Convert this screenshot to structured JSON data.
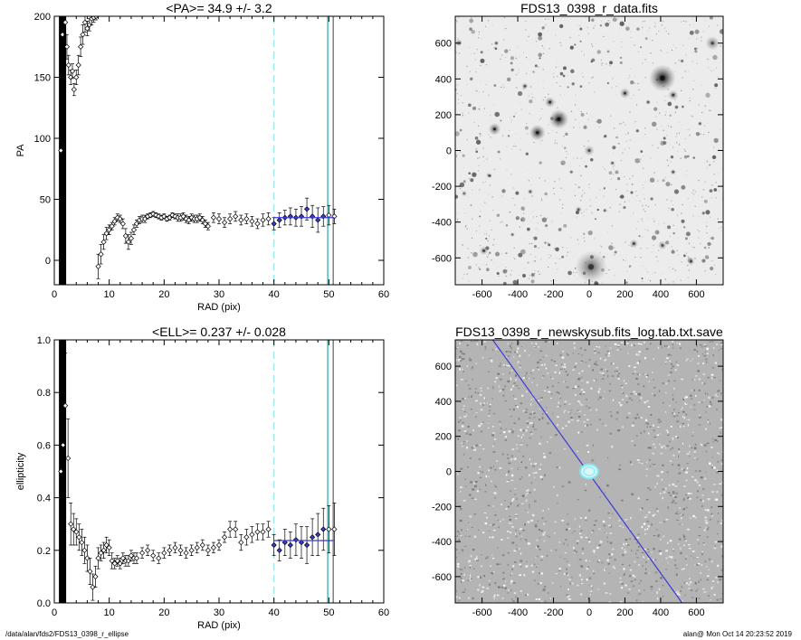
{
  "chart_data": [
    {
      "type": "scatter",
      "title": "<PA>=  34.9 +/-   3.2",
      "xlabel": "RAD (pix)",
      "ylabel": "PA",
      "xlim": [
        0,
        60
      ],
      "ylim": [
        -20,
        200
      ],
      "xticks": [
        0,
        10,
        20,
        30,
        40,
        50,
        60
      ],
      "yticks": [
        0,
        50,
        100,
        150,
        200
      ],
      "grid": false,
      "vlines": [
        {
          "x": 40,
          "style": "dashed",
          "color": "#9ee8ee"
        },
        {
          "x": 49.8,
          "style": "solid",
          "color": "#3fb8b0"
        },
        {
          "x": 50.8,
          "style": "solid",
          "color": "#777777"
        }
      ],
      "fit": {
        "x_range": [
          40,
          51
        ],
        "y": 35,
        "color": "#3a3ad8"
      },
      "series": [
        {
          "marker": "open-diamond",
          "x": [
            1.2,
            1.5,
            2.0,
            2.3,
            2.6,
            3.0,
            3.3,
            3.6,
            4.0,
            4.4,
            4.8,
            5.2,
            5.6,
            6.0,
            6.4,
            6.8,
            7.2,
            7.6,
            8.0,
            8.5,
            9.0,
            9.5,
            10.0,
            10.5,
            11.0,
            11.5,
            12.0,
            12.5,
            13.0,
            13.5,
            14.0,
            14.5,
            15.0,
            15.5,
            16.0,
            16.5,
            17.0,
            17.5,
            18.0,
            18.5,
            19.0,
            19.5,
            20.0,
            20.5,
            21.0,
            21.5,
            22.0,
            22.5,
            23.0,
            23.5,
            24.0,
            24.5,
            25.0,
            25.5,
            26.0,
            26.5,
            27.0,
            27.5,
            28.0,
            29.0,
            30.0,
            31.0,
            32.0,
            33.0,
            34.0,
            35.0,
            36.0,
            37.0,
            38.0,
            39.0,
            40.0,
            41.0,
            42.0,
            43.0,
            44.0,
            45.0,
            46.0,
            47.0,
            48.0,
            49.0,
            50.0,
            51.0
          ],
          "y": [
            90,
            185,
            195,
            175,
            160,
            150,
            155,
            140,
            150,
            160,
            175,
            185,
            195,
            190,
            193,
            198,
            199,
            200,
            -5,
            5,
            15,
            22,
            25,
            28,
            32,
            35,
            34,
            30,
            20,
            15,
            18,
            25,
            30,
            33,
            34,
            34,
            36,
            37,
            38,
            37,
            36,
            35,
            36,
            34,
            35,
            37,
            36,
            35,
            35,
            36,
            34,
            33,
            35,
            34,
            34,
            35,
            33,
            30,
            28,
            35,
            34,
            31,
            34,
            36,
            33,
            34,
            32,
            30,
            33,
            34,
            30,
            33,
            35,
            36,
            35,
            36,
            42,
            36,
            33,
            36,
            37,
            36
          ],
          "yerr": [
            5,
            8,
            10,
            10,
            8,
            6,
            6,
            5,
            6,
            8,
            8,
            8,
            8,
            6,
            5,
            5,
            4,
            3,
            10,
            8,
            6,
            5,
            4,
            3,
            3,
            3,
            3,
            4,
            6,
            6,
            5,
            4,
            3,
            3,
            3,
            3,
            2,
            2,
            2,
            2,
            2,
            2,
            2,
            2,
            2,
            2,
            2,
            3,
            3,
            3,
            3,
            3,
            3,
            3,
            3,
            3,
            3,
            3,
            3,
            4,
            4,
            4,
            4,
            4,
            4,
            4,
            4,
            4,
            5,
            5,
            5,
            6,
            6,
            7,
            7,
            8,
            9,
            9,
            10,
            8,
            8,
            6
          ]
        }
      ]
    },
    {
      "type": "image",
      "title": "FDS13_0398_r_data.fits",
      "xlim": [
        -750,
        750
      ],
      "ylim": [
        -750,
        750
      ],
      "xticks": [
        -600,
        -400,
        -200,
        0,
        200,
        400,
        600
      ],
      "yticks": [
        -600,
        -400,
        -200,
        0,
        200,
        400,
        600
      ],
      "colormap": "inverted-gray",
      "sources": [
        {
          "x": 410,
          "y": 405,
          "r": 75,
          "a": 1.0
        },
        {
          "x": -170,
          "y": 175,
          "r": 55,
          "a": 0.95
        },
        {
          "x": -290,
          "y": 100,
          "r": 45,
          "a": 0.85
        },
        {
          "x": -530,
          "y": 120,
          "r": 35,
          "a": 0.7
        },
        {
          "x": -220,
          "y": 270,
          "r": 30,
          "a": 0.65
        },
        {
          "x": 200,
          "y": 320,
          "r": 30,
          "a": 0.6
        },
        {
          "x": 470,
          "y": 310,
          "r": 28,
          "a": 0.6
        },
        {
          "x": 690,
          "y": 600,
          "r": 40,
          "a": 0.55
        },
        {
          "x": -360,
          "y": 360,
          "r": 20,
          "a": 0.5
        },
        {
          "x": 0,
          "y": 0,
          "r": 30,
          "a": 0.5
        },
        {
          "x": 10,
          "y": -650,
          "r": 90,
          "a": 0.6
        },
        {
          "x": -590,
          "y": -560,
          "r": 25,
          "a": 0.55
        },
        {
          "x": 250,
          "y": -520,
          "r": 25,
          "a": 0.55
        },
        {
          "x": 410,
          "y": -530,
          "r": 25,
          "a": 0.5
        },
        {
          "x": -60,
          "y": -330,
          "r": 20,
          "a": 0.45
        },
        {
          "x": -560,
          "y": -140,
          "r": 18,
          "a": 0.4
        },
        {
          "x": -330,
          "y": -230,
          "r": 18,
          "a": 0.4
        },
        {
          "x": 570,
          "y": -620,
          "r": 22,
          "a": 0.45
        },
        {
          "x": -520,
          "y": 600,
          "r": 16,
          "a": 0.4
        },
        {
          "x": 470,
          "y": -120,
          "r": 18,
          "a": 0.45
        },
        {
          "x": 330,
          "y": 270,
          "r": 16,
          "a": 0.45
        },
        {
          "x": 620,
          "y": 150,
          "r": 14,
          "a": 0.4
        },
        {
          "x": -700,
          "y": -240,
          "r": 18,
          "a": 0.35
        },
        {
          "x": 90,
          "y": 80,
          "r": 14,
          "a": 0.4
        },
        {
          "x": 130,
          "y": -70,
          "r": 16,
          "a": 0.4
        },
        {
          "x": -660,
          "y": 400,
          "r": 14,
          "a": 0.35
        },
        {
          "x": 270,
          "y": 110,
          "r": 14,
          "a": 0.4
        },
        {
          "x": -100,
          "y": -120,
          "r": 14,
          "a": 0.35
        },
        {
          "x": 520,
          "y": 500,
          "r": 14,
          "a": 0.35
        },
        {
          "x": -430,
          "y": 450,
          "r": 14,
          "a": 0.35
        },
        {
          "x": 350,
          "y": -270,
          "r": 14,
          "a": 0.35
        },
        {
          "x": -430,
          "y": -470,
          "r": 14,
          "a": 0.35
        },
        {
          "x": -240,
          "y": -420,
          "r": 12,
          "a": 0.3
        },
        {
          "x": 640,
          "y": -350,
          "r": 14,
          "a": 0.35
        }
      ]
    },
    {
      "type": "scatter",
      "title": "<ELL>= 0.237 +/-  0.028",
      "xlabel": "RAD (pix)",
      "ylabel": "ellipticity",
      "xlim": [
        0,
        60
      ],
      "ylim": [
        0,
        1
      ],
      "xticks": [
        0,
        10,
        20,
        30,
        40,
        50,
        60
      ],
      "yticks": [
        0,
        0.2,
        0.4,
        0.6,
        0.8,
        1.0
      ],
      "ytick_labels": [
        "0.0",
        "0.2",
        "0.4",
        "0.6",
        "0.8",
        "1.0"
      ],
      "grid": false,
      "vlines": [
        {
          "x": 40,
          "style": "dashed",
          "color": "#9ee8ee"
        },
        {
          "x": 49.8,
          "style": "solid",
          "color": "#3fb8b0"
        },
        {
          "x": 50.8,
          "style": "solid",
          "color": "#777777"
        }
      ],
      "fit": {
        "x_range": [
          40,
          51
        ],
        "y": 0.237,
        "color": "#3a3ad8"
      },
      "series": [
        {
          "marker": "open-diamond",
          "x": [
            1.2,
            1.6,
            2.0,
            2.5,
            3.0,
            3.5,
            4.0,
            4.5,
            5.0,
            5.5,
            6.0,
            6.5,
            7.0,
            7.5,
            8.0,
            8.5,
            9.0,
            9.5,
            10.0,
            10.5,
            11.0,
            11.5,
            12.0,
            12.5,
            13.0,
            13.5,
            14.0,
            14.5,
            15.0,
            16.0,
            17.0,
            18.0,
            19.0,
            20.0,
            21.0,
            22.0,
            23.0,
            24.0,
            25.0,
            26.0,
            27.0,
            28.0,
            29.0,
            30.0,
            31.0,
            32.0,
            33.0,
            34.0,
            35.0,
            36.0,
            37.0,
            38.0,
            39.0,
            40.0,
            41.0,
            42.0,
            43.0,
            44.0,
            45.0,
            46.0,
            47.0,
            48.0,
            49.0,
            50.0,
            51.0
          ],
          "y": [
            0.5,
            0.6,
            0.75,
            0.55,
            0.3,
            0.28,
            0.27,
            0.25,
            0.23,
            0.2,
            0.17,
            0.12,
            0.06,
            0.1,
            0.17,
            0.19,
            0.2,
            0.22,
            0.21,
            0.16,
            0.15,
            0.16,
            0.15,
            0.17,
            0.16,
            0.16,
            0.18,
            0.17,
            0.17,
            0.19,
            0.2,
            0.18,
            0.17,
            0.19,
            0.2,
            0.21,
            0.2,
            0.19,
            0.2,
            0.21,
            0.22,
            0.2,
            0.21,
            0.22,
            0.25,
            0.28,
            0.28,
            0.23,
            0.25,
            0.26,
            0.27,
            0.27,
            0.28,
            0.22,
            0.2,
            0.23,
            0.22,
            0.24,
            0.23,
            0.22,
            0.25,
            0.26,
            0.28,
            0.28,
            0.28
          ],
          "yerr": [
            0.1,
            0.15,
            0.2,
            0.15,
            0.08,
            0.06,
            0.05,
            0.05,
            0.05,
            0.05,
            0.05,
            0.05,
            0.05,
            0.04,
            0.04,
            0.03,
            0.03,
            0.03,
            0.03,
            0.03,
            0.02,
            0.02,
            0.02,
            0.02,
            0.02,
            0.02,
            0.02,
            0.02,
            0.02,
            0.02,
            0.02,
            0.02,
            0.02,
            0.02,
            0.02,
            0.02,
            0.02,
            0.02,
            0.02,
            0.02,
            0.02,
            0.02,
            0.02,
            0.02,
            0.02,
            0.03,
            0.03,
            0.03,
            0.03,
            0.03,
            0.03,
            0.03,
            0.03,
            0.04,
            0.04,
            0.05,
            0.05,
            0.06,
            0.06,
            0.07,
            0.07,
            0.08,
            0.08,
            0.09,
            0.1
          ]
        }
      ]
    },
    {
      "type": "image",
      "title": "FDS13_0398_r_newskysub.fits_log.tab.txt.save",
      "xlim": [
        -750,
        750
      ],
      "ylim": [
        -750,
        750
      ],
      "xticks": [
        -600,
        -400,
        -200,
        0,
        200,
        400,
        600
      ],
      "yticks": [
        -600,
        -400,
        -200,
        0,
        200,
        400,
        600
      ],
      "colormap": "gray-noise",
      "overlays": {
        "line": {
          "from": [
            -540,
            750
          ],
          "to": [
            520,
            -750
          ],
          "color": "#3a3ad8"
        },
        "ellipse": {
          "x": 0,
          "y": 0,
          "rx": 50,
          "ry": 40,
          "color": "#7fe8f0"
        }
      }
    }
  ],
  "footer": {
    "left": "/data/alan/fds2/FDS13_0398_r_ellipse",
    "right": "alan@  Mon Oct 14 20:23:52 2019"
  }
}
